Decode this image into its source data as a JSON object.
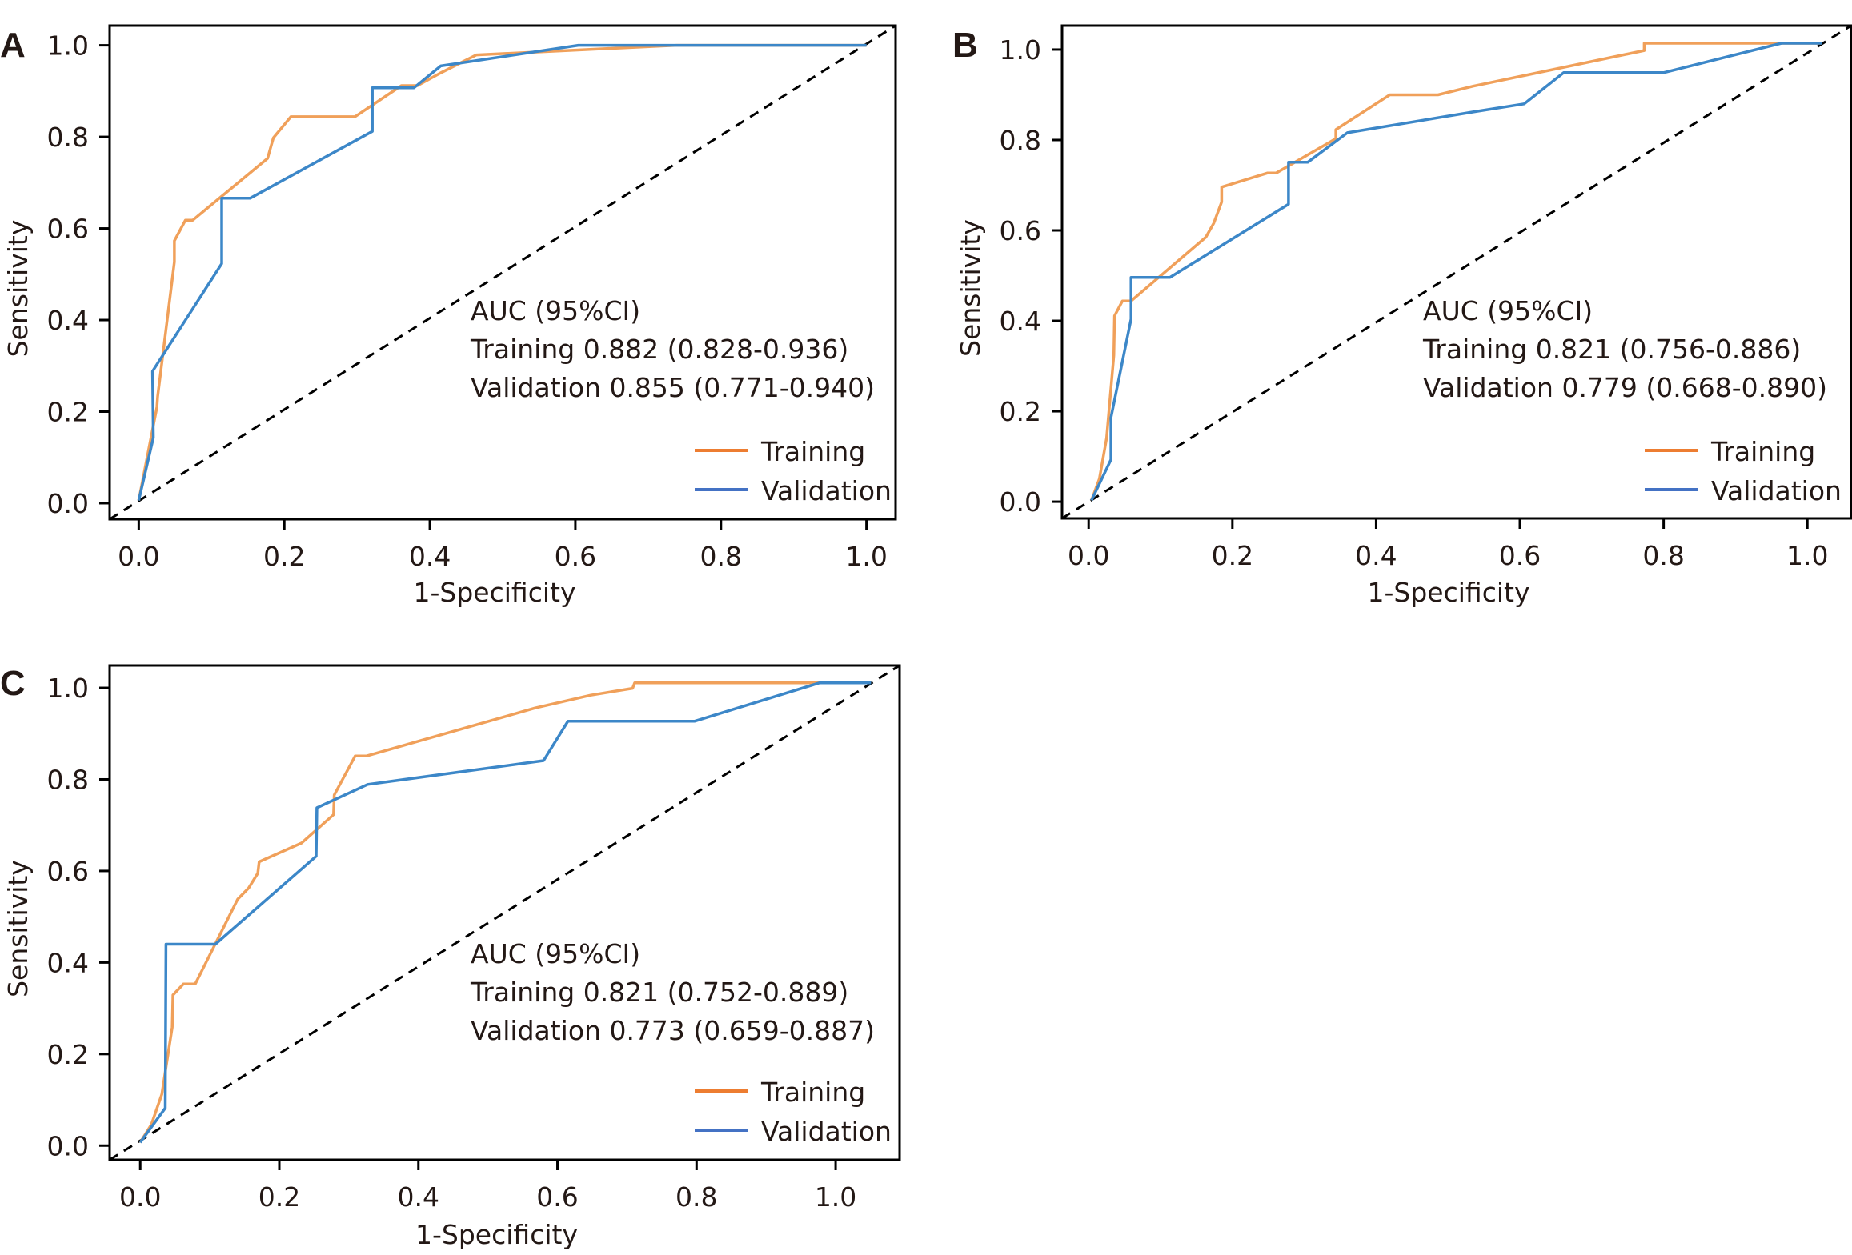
{
  "figure": {
    "colors": {
      "training_line": "#F0A05A",
      "validation_line": "#3C87C8",
      "training_legend": "#ED7D31",
      "validation_legend": "#4472C4",
      "diagonal": "#000000",
      "axes": "#000000",
      "text": "#231815"
    }
  },
  "chart_data": [
    {
      "panel": "A",
      "type": "line",
      "title": "",
      "xlabel": "1-Specificity",
      "ylabel": "Sensitivity",
      "xlim": [
        -0.04,
        1.04
      ],
      "ylim": [
        -0.035,
        1.043
      ],
      "xticks": [
        "0.0",
        "0.2",
        "0.4",
        "0.6",
        "0.8",
        "1.0"
      ],
      "yticks": [
        "0.0",
        "0.2",
        "0.4",
        "0.6",
        "0.8",
        "1.0"
      ],
      "grid": false,
      "legend_position": "bottom-right",
      "annotation": {
        "header": "AUC (95%CI)",
        "lines": [
          "Training 0.882 (0.828-0.936)",
          "Validation 0.855 (0.771-0.940)"
        ]
      },
      "reference_line": "diagonal (chance)",
      "series": [
        {
          "name": "Training",
          "x": [
            0.0,
            0.025,
            0.026,
            0.049,
            0.049,
            0.064,
            0.074,
            0.177,
            0.185,
            0.209,
            0.297,
            0.361,
            0.383,
            0.414,
            0.464,
            0.739,
            1.0
          ],
          "y": [
            0.006,
            0.21,
            0.233,
            0.527,
            0.573,
            0.618,
            0.618,
            0.753,
            0.798,
            0.844,
            0.844,
            0.912,
            0.912,
            0.939,
            0.979,
            1.0,
            1.0
          ]
        },
        {
          "name": "Validation",
          "x": [
            0.0,
            0.02,
            0.019,
            0.114,
            0.114,
            0.153,
            0.321,
            0.321,
            0.378,
            0.415,
            0.604,
            1.0
          ],
          "y": [
            0.006,
            0.143,
            0.288,
            0.523,
            0.666,
            0.666,
            0.812,
            0.907,
            0.907,
            0.955,
            1.0,
            1.0
          ]
        }
      ]
    },
    {
      "panel": "B",
      "type": "line",
      "title": "",
      "xlabel": "1-Specificity",
      "ylabel": "Sensitivity",
      "xlim": [
        -0.037,
        1.061
      ],
      "ylim": [
        -0.037,
        1.053
      ],
      "xticks": [
        "0.0",
        "0.2",
        "0.4",
        "0.6",
        "0.8",
        "1.0"
      ],
      "yticks": [
        "0.0",
        "0.2",
        "0.4",
        "0.6",
        "0.8",
        "1.0"
      ],
      "grid": false,
      "legend_position": "bottom-right",
      "annotation": {
        "header": "AUC (95%CI)",
        "lines": [
          "Training 0.821 (0.756-0.886)",
          "Validation 0.779 (0.668-0.890)"
        ]
      },
      "reference_line": "diagonal (chance)",
      "series": [
        {
          "name": "Training",
          "x": [
            0.004,
            0.015,
            0.025,
            0.035,
            0.036,
            0.047,
            0.059,
            0.163,
            0.174,
            0.185,
            0.185,
            0.249,
            0.261,
            0.344,
            0.344,
            0.419,
            0.486,
            0.535,
            0.773,
            0.773,
            0.964,
            1.02
          ],
          "y": [
            0.003,
            0.051,
            0.141,
            0.324,
            0.411,
            0.444,
            0.444,
            0.585,
            0.616,
            0.663,
            0.696,
            0.727,
            0.727,
            0.803,
            0.823,
            0.9,
            0.9,
            0.919,
            0.998,
            1.014,
            1.014,
            1.014
          ]
        },
        {
          "name": "Validation",
          "x": [
            0.004,
            0.031,
            0.031,
            0.059,
            0.059,
            0.113,
            0.278,
            0.278,
            0.305,
            0.36,
            0.535,
            0.606,
            0.661,
            0.8,
            0.964,
            1.02
          ],
          "y": [
            0.003,
            0.093,
            0.186,
            0.404,
            0.496,
            0.496,
            0.658,
            0.751,
            0.751,
            0.816,
            0.862,
            0.88,
            0.949,
            0.949,
            1.014,
            1.014
          ]
        }
      ]
    },
    {
      "panel": "C",
      "type": "line",
      "title": "",
      "xlabel": "1-Specificity",
      "ylabel": "Sensitivity",
      "xlim": [
        -0.044,
        1.092
      ],
      "ylim": [
        -0.031,
        1.049
      ],
      "xticks": [
        "0.0",
        "0.2",
        "0.4",
        "0.6",
        "0.8",
        "1.0"
      ],
      "yticks": [
        "0.0",
        "0.2",
        "0.4",
        "0.6",
        "0.8",
        "1.0"
      ],
      "grid": false,
      "legend_position": "bottom-right",
      "annotation": {
        "header": "AUC (95%CI)",
        "lines": [
          "Training 0.821 (0.752-0.889)",
          "Validation 0.773 (0.659-0.887)"
        ]
      },
      "reference_line": "diagonal (chance)",
      "series": [
        {
          "name": "Training",
          "x": [
            0.0,
            0.016,
            0.031,
            0.046,
            0.047,
            0.062,
            0.079,
            0.14,
            0.156,
            0.169,
            0.171,
            0.232,
            0.278,
            0.279,
            0.309,
            0.325,
            0.568,
            0.648,
            0.708,
            0.711,
            0.977,
            1.051
          ],
          "y": [
            0.007,
            0.046,
            0.112,
            0.259,
            0.329,
            0.353,
            0.353,
            0.538,
            0.563,
            0.595,
            0.62,
            0.661,
            0.723,
            0.766,
            0.851,
            0.851,
            0.956,
            0.984,
            0.999,
            1.011,
            1.011,
            1.011
          ]
        },
        {
          "name": "Validation",
          "x": [
            0.0,
            0.036,
            0.037,
            0.108,
            0.253,
            0.254,
            0.327,
            0.58,
            0.615,
            0.797,
            0.977,
            1.051
          ],
          "y": [
            0.007,
            0.082,
            0.44,
            0.44,
            0.632,
            0.738,
            0.789,
            0.841,
            0.927,
            0.927,
            1.011,
            1.011
          ]
        }
      ]
    }
  ]
}
